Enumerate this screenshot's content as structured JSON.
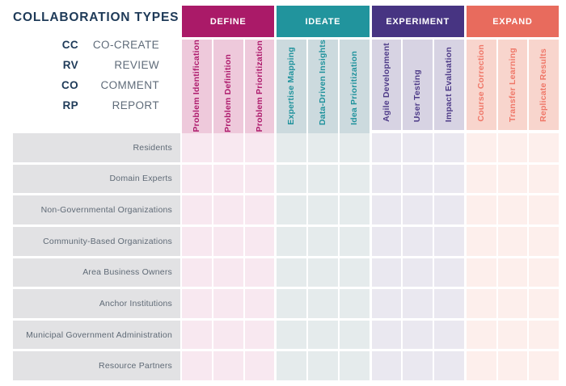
{
  "title": "COLLABORATION TYPES",
  "legend": [
    {
      "code": "CC",
      "label": "CO-CREATE"
    },
    {
      "code": "RV",
      "label": "REVIEW"
    },
    {
      "code": "CO",
      "label": "COMMENT"
    },
    {
      "code": "RP",
      "label": "REPORT"
    }
  ],
  "phases": [
    {
      "name": "DEFINE",
      "columns": [
        "Problem Identification",
        "Problem Definition",
        "Problem Prioritization"
      ],
      "colors": {
        "header": "#aa1a68",
        "column_bg": "#eec9db",
        "column_text": "#ae1b6d",
        "cell_bg": "#f8e8f0"
      }
    },
    {
      "name": "IDEATE",
      "columns": [
        "Expertise Mapping",
        "Data-Driven Insights",
        "Idea Prioritization"
      ],
      "colors": {
        "header": "#21949d",
        "column_bg": "#ccdade",
        "column_text": "#1f929c",
        "cell_bg": "#e5ebec"
      }
    },
    {
      "name": "EXPERIMENT",
      "columns": [
        "Agile Development",
        "User Testing",
        "Impact Evaluation"
      ],
      "colors": {
        "header": "#473482",
        "column_bg": "#d7d3e3",
        "column_text": "#4e3b88",
        "cell_bg": "#eae8f0"
      }
    },
    {
      "name": "EXPAND",
      "columns": [
        "Course Correction",
        "Transfer Learning",
        "Replicate Results"
      ],
      "colors": {
        "header": "#e86b5d",
        "column_bg": "#f8d5cd",
        "column_text": "#ef7768",
        "cell_bg": "#fdefec"
      }
    }
  ],
  "rows": [
    "Residents",
    "Domain Experts",
    "Non-Governmental Organizations",
    "Community-Based Organizations",
    "Area Business Owners",
    "Anchor Institutions",
    "Municipal Government Administration",
    "Resource Partners"
  ],
  "colors": {
    "background": "#ffffff",
    "title_text": "#1e3a58",
    "legend_label_text": "#5f6b79",
    "row_label_bg": "#e2e2e4",
    "row_label_text": "#5f6a76"
  }
}
